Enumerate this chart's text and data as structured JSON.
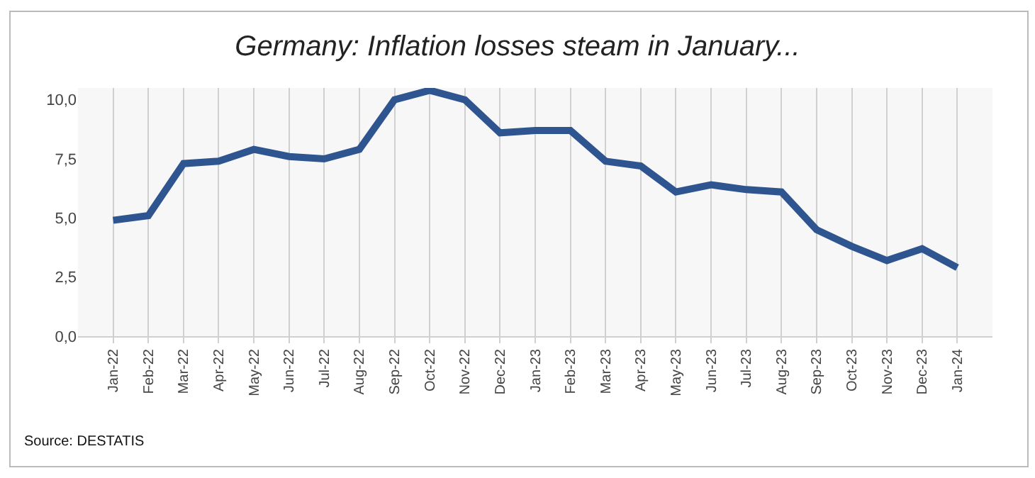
{
  "chart_data": {
    "type": "line",
    "title": "Germany: Inflation losses steam in January...",
    "categories": [
      "Jan-22",
      "Feb-22",
      "Mar-22",
      "Apr-22",
      "May-22",
      "Jun-22",
      "Jul-22",
      "Aug-22",
      "Sep-22",
      "Oct-22",
      "Nov-22",
      "Dec-22",
      "Jan-23",
      "Feb-23",
      "Mar-23",
      "Apr-23",
      "May-23",
      "Jun-23",
      "Jul-23",
      "Aug-23",
      "Sep-23",
      "Oct-23",
      "Nov-23",
      "Dec-23",
      "Jan-24"
    ],
    "series": [
      {
        "color": "#2e5590",
        "values": [
          4.9,
          5.1,
          7.3,
          7.4,
          7.9,
          7.6,
          7.5,
          7.9,
          10.0,
          10.4,
          10.0,
          8.6,
          8.7,
          8.7,
          7.4,
          7.2,
          6.1,
          6.4,
          6.2,
          6.1,
          4.5,
          3.8,
          3.2,
          3.7,
          2.9
        ]
      }
    ],
    "ylim": [
      0,
      10.5
    ],
    "yticks": [
      {
        "value": 0,
        "label": "0,0"
      },
      {
        "value": 2.5,
        "label": "2,5"
      },
      {
        "value": 5,
        "label": "5,0"
      },
      {
        "value": 7.5,
        "label": "7,5"
      },
      {
        "value": 10,
        "label": "10,0"
      }
    ],
    "grid": "x",
    "marker": "none",
    "line_style": "solid",
    "annotations": [
      "Source: DESTATIS"
    ]
  }
}
